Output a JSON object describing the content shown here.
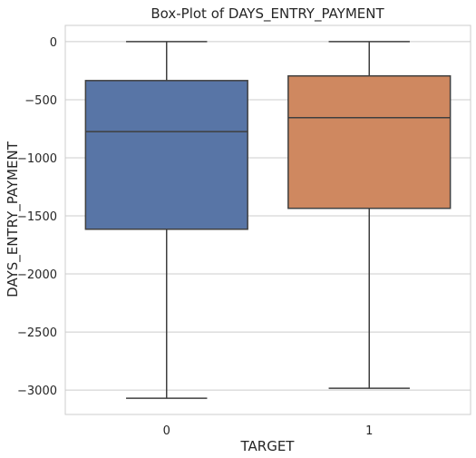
{
  "chart_data": {
    "type": "box",
    "title": "Box-Plot of DAYS_ENTRY_PAYMENT",
    "xlabel": "TARGET",
    "ylabel": "DAYS_ENTRY_PAYMENT",
    "categories": [
      "0",
      "1"
    ],
    "ylim": [
      -3210,
      140
    ],
    "yticks": [
      0,
      -500,
      -1000,
      -1500,
      -2000,
      -2500,
      -3000
    ],
    "ytick_labels": [
      "0",
      "−500",
      "−1000",
      "−1500",
      "−2000",
      "−2500",
      "−3000"
    ],
    "grid": "horizontal",
    "boxes": [
      {
        "category": "0",
        "whisker_low": -3070,
        "q1": -1615,
        "median": -775,
        "q3": -335,
        "whisker_high": 0,
        "color": "#5875a6"
      },
      {
        "category": "1",
        "whisker_low": -2985,
        "q1": -1435,
        "median": -655,
        "q3": -295,
        "whisker_high": 0,
        "color": "#cf8860"
      }
    ],
    "line_color": "#3f3f3f",
    "grid_color": "#cccccc",
    "spine_color": "#cccccc"
  }
}
